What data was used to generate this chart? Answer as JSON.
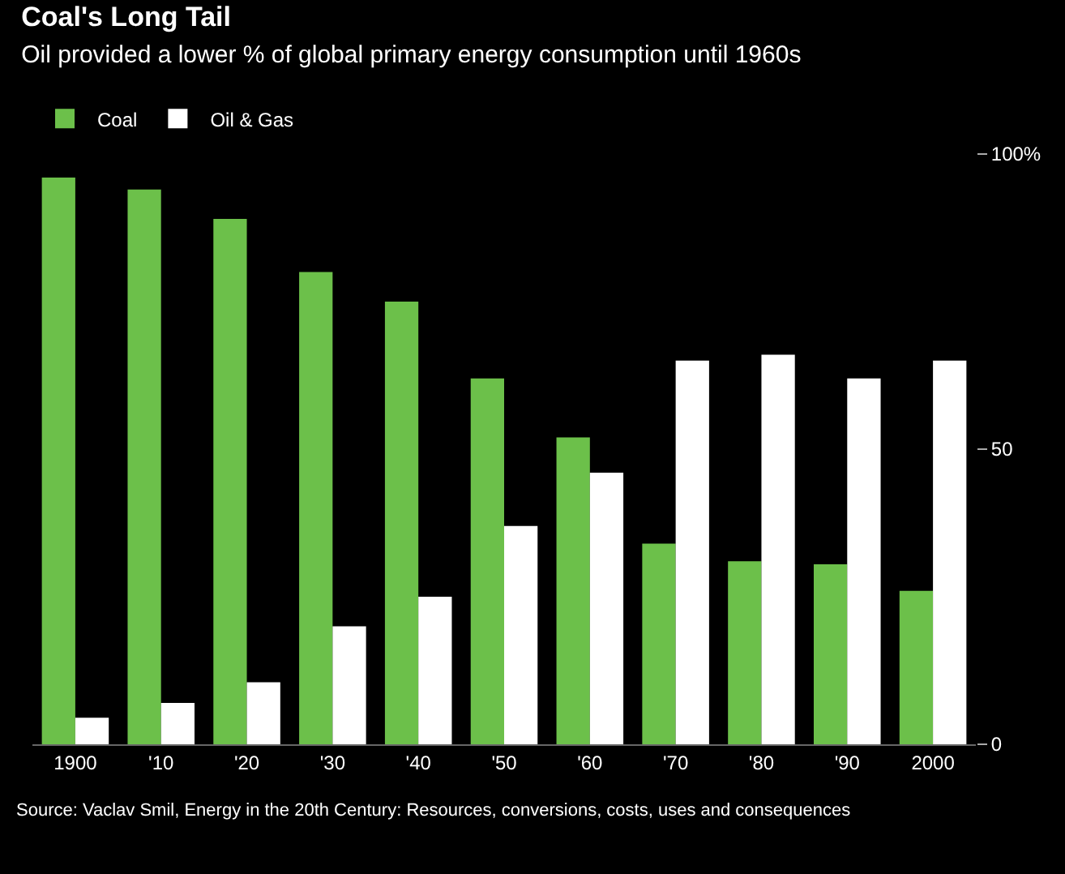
{
  "chart_data": {
    "type": "bar",
    "title": "Coal's Long Tail",
    "subtitle": "Oil provided a lower % of global primary energy consumption until 1960s",
    "categories": [
      "1900",
      "'10",
      "'20",
      "'30",
      "'40",
      "'50",
      "'60",
      "'70",
      "'80",
      "'90",
      "2000"
    ],
    "series": [
      {
        "name": "Coal",
        "color": "#6cc04a",
        "values": [
          96,
          94,
          89,
          80,
          75,
          62,
          52,
          34,
          31,
          30.5,
          26
        ]
      },
      {
        "name": "Oil & Gas",
        "color": "#ffffff",
        "values": [
          4.5,
          7,
          10.5,
          20,
          25,
          37,
          46,
          65,
          66,
          62,
          65
        ]
      }
    ],
    "ylim": [
      0,
      100
    ],
    "yticks": [
      0,
      50,
      {
        "value": 100,
        "label": "100%"
      }
    ],
    "grid": false,
    "legend": "top left",
    "annotations": [
      "Source: Vaclav Smil, Energy in the 20th Century: Resources, conversions, costs, uses and consequences"
    ]
  }
}
